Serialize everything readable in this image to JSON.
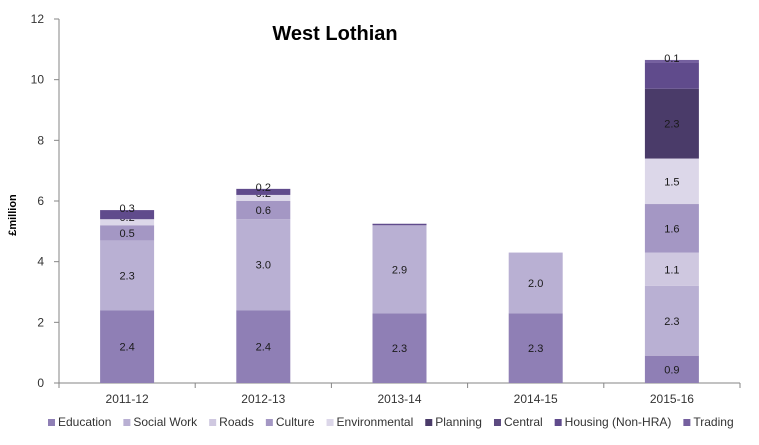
{
  "chart_data": {
    "type": "bar",
    "stacked": true,
    "title": "West Lothian",
    "xlabel": "",
    "ylabel": "£million",
    "ylim": [
      0,
      12
    ],
    "yticks": [
      0,
      2,
      4,
      6,
      8,
      10,
      12
    ],
    "grid": false,
    "legend_position": "bottom",
    "categories": [
      "2011-12",
      "2012-13",
      "2013-14",
      "2014-15",
      "2015-16"
    ],
    "series": [
      {
        "name": "Education",
        "color": "#8f7fb5",
        "values": [
          2.4,
          2.4,
          2.3,
          2.3,
          0.9
        ],
        "labels": [
          "2.4",
          "2.4",
          "2.3",
          "2.3",
          "0.9"
        ]
      },
      {
        "name": "Social Work",
        "color": "#b9b0d3",
        "values": [
          2.3,
          3.0,
          2.9,
          2.0,
          2.3
        ],
        "labels": [
          "2.3",
          "3.0",
          "2.9",
          "2.0",
          "2.3"
        ]
      },
      {
        "name": "Roads",
        "color": "#cfc8e0",
        "values": [
          0,
          0,
          0,
          0,
          1.1
        ],
        "labels": [
          "",
          "",
          "",
          "",
          "1.1"
        ]
      },
      {
        "name": "Culture",
        "color": "#a497c4",
        "values": [
          0.5,
          0.6,
          0,
          0,
          1.6
        ],
        "labels": [
          "0.5",
          "0.6",
          "",
          "",
          "1.6"
        ]
      },
      {
        "name": "Environmental",
        "color": "#dcd7e9",
        "values": [
          0.2,
          0.2,
          0,
          0,
          1.5
        ],
        "labels": [
          "0.2",
          "0.2",
          "",
          "",
          "1.5"
        ]
      },
      {
        "name": "Planning",
        "color": "#4a3b69",
        "values": [
          0,
          0,
          0,
          0,
          2.3
        ],
        "labels": [
          "",
          "",
          "",
          "",
          "2.3"
        ]
      },
      {
        "name": "Central",
        "color": "#5c4a80",
        "values": [
          0,
          0,
          0,
          0,
          0
        ],
        "labels": [
          "",
          "",
          "",
          "",
          ""
        ]
      },
      {
        "name": "Housing (Non-HRA)",
        "color": "#604b8c",
        "values": [
          0.3,
          0.2,
          0.05,
          0,
          0.85
        ],
        "labels": [
          "0.3",
          "0.2",
          "",
          "",
          ""
        ]
      },
      {
        "name": "Trading",
        "color": "#75609f",
        "values": [
          0,
          0,
          0,
          0,
          0.1
        ],
        "labels": [
          "",
          "",
          "",
          "",
          "0.1"
        ]
      }
    ]
  }
}
